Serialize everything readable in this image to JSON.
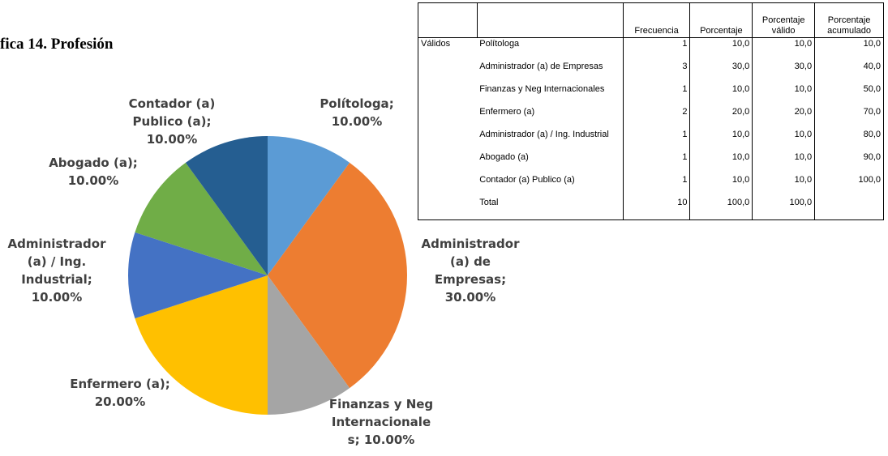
{
  "title": "fica 14. Profesión",
  "chart_data": {
    "type": "pie",
    "categories": [
      "Polítologa",
      "Administrador (a) de Empresas",
      "Finanzas y Neg Internacionale s",
      "Enfermero (a)",
      "Administrador (a) / Ing. Industrial",
      "Abogado (a)",
      "Contador (a) Publico (a)"
    ],
    "values": [
      10,
      30,
      10,
      20,
      10,
      10,
      10
    ],
    "value_labels": [
      "10.00%",
      "30.00%",
      "10.00%",
      "20.00%",
      "10.00%",
      "10.00%",
      "10.00%"
    ],
    "colors": [
      "#5b9bd5",
      "#ed7d31",
      "#a5a5a5",
      "#ffc000",
      "#4472c4",
      "#70ad47",
      "#255e91"
    ]
  },
  "table": {
    "headers": [
      "Frecuencia",
      "Porcentaje",
      "Porcentaje válido",
      "Porcentaje acumulado"
    ],
    "group": "Válidos",
    "rows": [
      [
        "Polítologa",
        1,
        "10,0",
        "10,0",
        "10,0"
      ],
      [
        "Administrador (a) de Empresas",
        3,
        "30,0",
        "30,0",
        "40,0"
      ],
      [
        "Finanzas y Neg Internacionales",
        1,
        "10,0",
        "10,0",
        "50,0"
      ],
      [
        "Enfermero (a)",
        2,
        "20,0",
        "20,0",
        "70,0"
      ],
      [
        "Administrador (a) / Ing. Industrial",
        1,
        "10,0",
        "10,0",
        "80,0"
      ],
      [
        "Abogado (a)",
        1,
        "10,0",
        "10,0",
        "90,0"
      ],
      [
        "Contador (a) Publico (a)",
        1,
        "10,0",
        "10,0",
        "100,0"
      ],
      [
        "Total",
        10,
        "100,0",
        "100,0"
      ]
    ]
  }
}
